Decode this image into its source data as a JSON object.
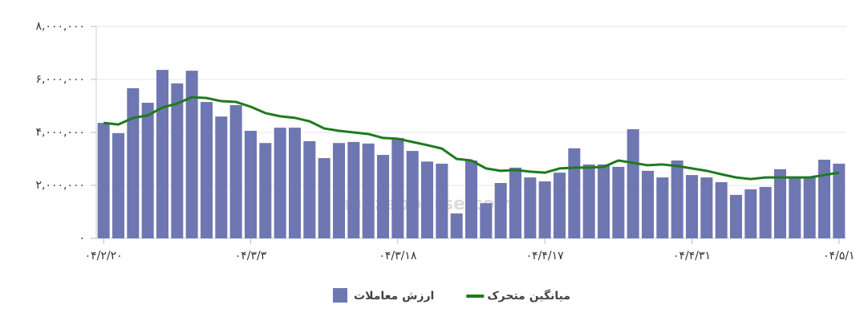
{
  "chart_data": {
    "type": "bar",
    "watermark": "nabzebourse.com",
    "categories": [
      "۰۴/۲/۲۰",
      null,
      null,
      null,
      null,
      null,
      null,
      null,
      null,
      null,
      "۰۴/۳/۳",
      null,
      null,
      null,
      null,
      null,
      null,
      null,
      null,
      null,
      "۰۴/۳/۱۸",
      null,
      null,
      null,
      null,
      null,
      null,
      null,
      null,
      null,
      "۰۴/۴/۱۷",
      null,
      null,
      null,
      null,
      null,
      null,
      null,
      null,
      null,
      "۰۴/۴/۳۱",
      null,
      null,
      null,
      null,
      null,
      null,
      null,
      null,
      null,
      "۰۴/۵/۱"
    ],
    "series": [
      {
        "name": "ارزش معاملات",
        "type": "bar",
        "color": "#6e77b1",
        "values": [
          4360000,
          3970000,
          5670000,
          5120000,
          6360000,
          5850000,
          6330000,
          5150000,
          4600000,
          5030000,
          4060000,
          3600000,
          4180000,
          4180000,
          3670000,
          3030000,
          3600000,
          3640000,
          3580000,
          3150000,
          3790000,
          3300000,
          2900000,
          2820000,
          940000,
          2940000,
          1330000,
          2090000,
          2670000,
          2300000,
          2150000,
          2480000,
          3400000,
          2790000,
          2790000,
          2700000,
          4120000,
          2550000,
          2300000,
          2940000,
          2390000,
          2300000,
          2120000,
          1640000,
          1850000,
          1940000,
          2610000,
          2300000,
          2300000,
          2970000,
          2820000
        ]
      },
      {
        "name": "میانگین متحرک",
        "type": "line",
        "color": "#1f7a1f",
        "values": [
          4360000,
          4300000,
          4550000,
          4640000,
          4940000,
          5090000,
          5330000,
          5300000,
          5180000,
          5150000,
          4970000,
          4730000,
          4610000,
          4550000,
          4420000,
          4150000,
          4060000,
          4000000,
          3940000,
          3790000,
          3760000,
          3640000,
          3520000,
          3390000,
          3000000,
          2940000,
          2640000,
          2550000,
          2580000,
          2520000,
          2480000,
          2640000,
          2670000,
          2670000,
          2700000,
          2940000,
          2850000,
          2760000,
          2790000,
          2730000,
          2640000,
          2550000,
          2420000,
          2300000,
          2240000,
          2300000,
          2300000,
          2300000,
          2300000,
          2390000,
          2480000
        ]
      }
    ],
    "ylim": [
      0,
      8000000
    ],
    "yticks": [
      {
        "value": 0,
        "label": "۰"
      },
      {
        "value": 2000000,
        "label": "۲,۰۰۰,۰۰۰"
      },
      {
        "value": 4000000,
        "label": "۴,۰۰۰,۰۰۰"
      },
      {
        "value": 6000000,
        "label": "۶,۰۰۰,۰۰۰"
      },
      {
        "value": 8000000,
        "label": "۸,۰۰۰,۰۰۰"
      }
    ],
    "grid": true
  }
}
